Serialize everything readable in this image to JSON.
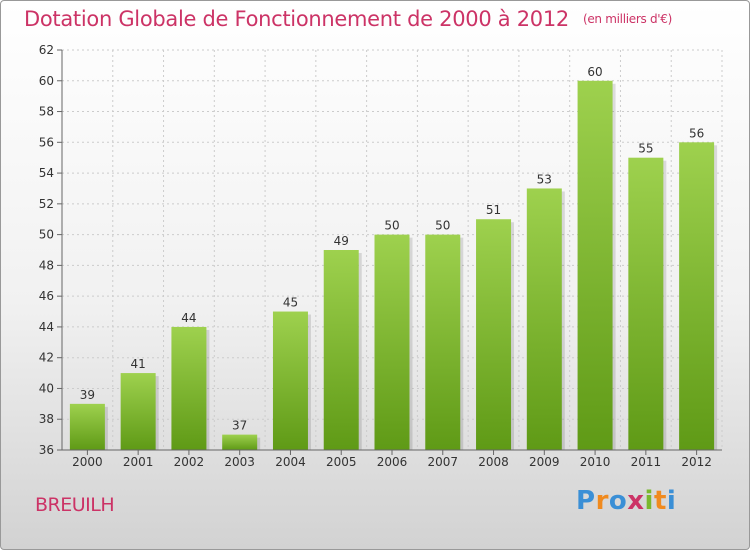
{
  "header": {
    "title": "Dotation Globale de Fonctionnement de 2000 à 2012",
    "unit": "(en milliers d'€)"
  },
  "footer": {
    "commune": "BREUILH",
    "logo": "Proxiti",
    "logo_letters": [
      {
        "char": "P",
        "color": "#3a8fd6"
      },
      {
        "char": "r",
        "color": "#f08a1e"
      },
      {
        "char": "o",
        "color": "#3a8fd6"
      },
      {
        "char": "x",
        "color": "#cc3366"
      },
      {
        "char": "i",
        "color": "#7ab82e"
      },
      {
        "char": "t",
        "color": "#f08a1e"
      },
      {
        "char": "i",
        "color": "#3a8fd6"
      }
    ]
  },
  "colors": {
    "bar_top": "#9ed14e",
    "bar_bottom": "#5f9a16",
    "grid": "#cccccc",
    "title": "#cc3366"
  },
  "chart_data": {
    "type": "bar",
    "title": "Dotation Globale de Fonctionnement de 2000 à 2012",
    "subtitle": "(en milliers d'€)",
    "xlabel": "",
    "ylabel": "",
    "categories": [
      "2000",
      "2001",
      "2002",
      "2003",
      "2004",
      "2005",
      "2006",
      "2007",
      "2008",
      "2009",
      "2010",
      "2011",
      "2012"
    ],
    "values": [
      39,
      41,
      44,
      37,
      45,
      49,
      50,
      50,
      51,
      53,
      60,
      55,
      56
    ],
    "ylim": [
      36,
      62
    ],
    "yticks": [
      36,
      38,
      40,
      42,
      44,
      46,
      48,
      50,
      52,
      54,
      56,
      58,
      60,
      62
    ],
    "grid": true,
    "legend": "none"
  }
}
